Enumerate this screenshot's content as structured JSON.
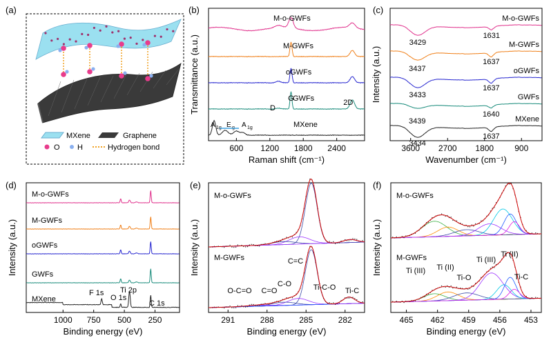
{
  "panel_labels": [
    "(a)",
    "(b)",
    "(c)",
    "(d)",
    "(e)",
    "(f)"
  ],
  "colors": {
    "mogwfs": "#e0318c",
    "mgwfs": "#f0801a",
    "ogwfs": "#2626d0",
    "gwfs": "#1a8c7c",
    "mxene": "#222222",
    "fit_envelope": "#cc0000",
    "fit_green": "#3cb043",
    "fit_orange": "#ff8c00",
    "fit_navy": "#3a4aa8",
    "fit_purple": "#9b30ff",
    "fit_cyan": "#00c8e6",
    "fit_blue": "#1e5aff",
    "fit_magenta": "#e020e0",
    "mxene_layer": "#7fd0e8",
    "graphene_layer": "#3a3a3a",
    "oxygen": "#e83c8c",
    "hydrogen": "#8ab0f0",
    "hbond": "#f0a020"
  },
  "schematic": {
    "legend": {
      "mxene": "MXene",
      "graphene": "Graphene",
      "o": "O",
      "h": "H",
      "hbond": "Hydrogen bond"
    }
  },
  "chart_data": [
    {
      "id": "b",
      "type": "line",
      "xlabel": "Raman shift (cm⁻¹)",
      "ylabel": "Transmittance (a.u.)",
      "xlim": [
        100,
        2900
      ],
      "xticks": [
        600,
        1200,
        1800,
        2400
      ],
      "series": [
        {
          "name": "M-o-GWFs",
          "color_key": "mogwfs",
          "offset": 5,
          "peaks": [
            [
              1580,
              0.25,
              40
            ],
            [
              2680,
              0.12,
              50
            ],
            [
              1350,
              0.05,
              60
            ]
          ]
        },
        {
          "name": "M-GWFs",
          "color_key": "mgwfs",
          "offset": 4,
          "peaks": [
            [
              1580,
              0.35,
              18
            ],
            [
              2680,
              0.15,
              40
            ]
          ]
        },
        {
          "name": "oGWFs",
          "color_key": "ogwfs",
          "offset": 3,
          "peaks": [
            [
              1580,
              0.35,
              18
            ],
            [
              2680,
              0.15,
              40
            ],
            [
              1350,
              0.04,
              40
            ]
          ]
        },
        {
          "name": "GWFs",
          "color_key": "gwfs",
          "offset": 2,
          "peaks": [
            [
              1580,
              0.42,
              16
            ],
            [
              2680,
              0.22,
              40
            ],
            [
              1350,
              0.02,
              40
            ]
          ]
        },
        {
          "name": "MXene",
          "color_key": "mxene",
          "offset": 1,
          "peaks": [
            [
              200,
              0.35,
              30
            ],
            [
              400,
              0.12,
              50
            ],
            [
              600,
              0.1,
              50
            ],
            [
              720,
              0.06,
              40
            ]
          ]
        }
      ],
      "annotations": {
        "D": "D",
        "G": "G",
        "twoD": "2D",
        "a1g": "A",
        "a1g_sub": "1g",
        "eg": "E",
        "eg_sub": "g"
      }
    },
    {
      "id": "c",
      "type": "line",
      "xlabel": "Wavenumber (cm⁻¹)",
      "ylabel": "Intensity (a.u.)",
      "xlim": [
        4100,
        400
      ],
      "xticks": [
        3600,
        2700,
        1800,
        900
      ],
      "series": [
        {
          "name": "M-o-GWFs",
          "color_key": "mogwfs",
          "offset": 5,
          "dips": [
            [
              3429,
              0.35,
              180
            ],
            [
              1631,
              0.12,
              60
            ]
          ],
          "labels": [
            "3429",
            "1631"
          ]
        },
        {
          "name": "M-GWFs",
          "color_key": "mgwfs",
          "offset": 4,
          "dips": [
            [
              3437,
              0.3,
              180
            ],
            [
              1637,
              0.15,
              60
            ]
          ],
          "labels": [
            "3437",
            "1637"
          ]
        },
        {
          "name": "oGWFs",
          "color_key": "ogwfs",
          "offset": 3,
          "dips": [
            [
              3433,
              0.35,
              180
            ],
            [
              1637,
              0.15,
              60
            ]
          ],
          "labels": [
            "3433",
            "1637"
          ]
        },
        {
          "name": "GWFs",
          "color_key": "gwfs",
          "offset": 2,
          "dips": [
            [
              3439,
              0.15,
              180
            ],
            [
              1640,
              0.1,
              60
            ]
          ],
          "labels": [
            "3439",
            "1640"
          ]
        },
        {
          "name": "MXene",
          "color_key": "mxene",
          "offset": 1,
          "dips": [
            [
              3434,
              0.4,
              180
            ],
            [
              1637,
              0.15,
              60
            ]
          ],
          "labels": [
            "3434",
            "1637"
          ]
        }
      ]
    },
    {
      "id": "d",
      "type": "line",
      "xlabel": "Binding energy (eV)",
      "ylabel": "Intensity (a.u.)",
      "xlim": [
        1300,
        50
      ],
      "xticks": [
        1000,
        750,
        500,
        250
      ],
      "series": [
        {
          "name": "M-o-GWFs",
          "color_key": "mogwfs",
          "offset": 5
        },
        {
          "name": "M-GWFs",
          "color_key": "mgwfs",
          "offset": 4
        },
        {
          "name": "oGWFs",
          "color_key": "ogwfs",
          "offset": 3
        },
        {
          "name": "GWFs",
          "color_key": "gwfs",
          "offset": 2
        },
        {
          "name": "MXene",
          "color_key": "mxene",
          "offset": 1
        }
      ],
      "peak_labels": [
        "F 1s",
        "O 1s",
        "Ti 2p",
        "C 1s"
      ]
    },
    {
      "id": "e",
      "type": "line",
      "xlabel": "Binding energy (eV)",
      "ylabel": "Intensity (a.u.)",
      "xlim": [
        292.5,
        280.5
      ],
      "xticks": [
        291,
        288,
        285,
        282
      ],
      "panels": [
        {
          "name": "M-o-GWFs",
          "components": [
            [
              284.6,
              1.0,
              0.45
            ],
            [
              285.5,
              0.12,
              0.8
            ],
            [
              286.7,
              0.05,
              0.9
            ],
            [
              281.6,
              0.05,
              0.5
            ]
          ]
        },
        {
          "name": "M-GWFs",
          "components": [
            [
              284.6,
              1.0,
              0.45
            ],
            [
              285.6,
              0.12,
              0.8
            ],
            [
              286.7,
              0.06,
              0.9
            ],
            [
              288.6,
              0.02,
              0.9
            ],
            [
              281.7,
              0.12,
              0.45
            ]
          ]
        }
      ],
      "peak_labels": [
        "O-C=O",
        "C=O",
        "C-O",
        "C=C",
        "Ti-C-O",
        "Ti-C"
      ]
    },
    {
      "id": "f",
      "type": "line",
      "xlabel": "Binding energy (eV)",
      "ylabel": "Intensity (a.u.)",
      "xlim": [
        466.5,
        452
      ],
      "xticks": [
        465,
        462,
        459,
        456,
        453
      ],
      "panels": [
        {
          "name": "M-o-GWFs",
          "components": [
            [
              462.3,
              0.3,
              1.2
            ],
            [
              461.0,
              0.18,
              1.0
            ],
            [
              459.2,
              0.12,
              1.2
            ],
            [
              457.0,
              0.22,
              1.1
            ],
            [
              455.7,
              0.5,
              0.9
            ],
            [
              455.0,
              0.4,
              0.6
            ],
            [
              454.6,
              0.25,
              0.5
            ]
          ]
        },
        {
          "name": "M-GWFs",
          "components": [
            [
              462.3,
              0.15,
              1.0
            ],
            [
              461.0,
              0.18,
              1.0
            ],
            [
              459.2,
              0.15,
              1.2
            ],
            [
              456.8,
              0.55,
              1.1
            ],
            [
              455.6,
              0.3,
              0.7
            ],
            [
              455.0,
              0.45,
              0.55
            ],
            [
              454.6,
              0.2,
              0.5
            ]
          ]
        }
      ],
      "peak_labels": [
        "Ti (III)",
        "Ti (II)",
        "Ti-O",
        "Ti (III)",
        "Ti (II)",
        "Ti-C"
      ]
    }
  ]
}
